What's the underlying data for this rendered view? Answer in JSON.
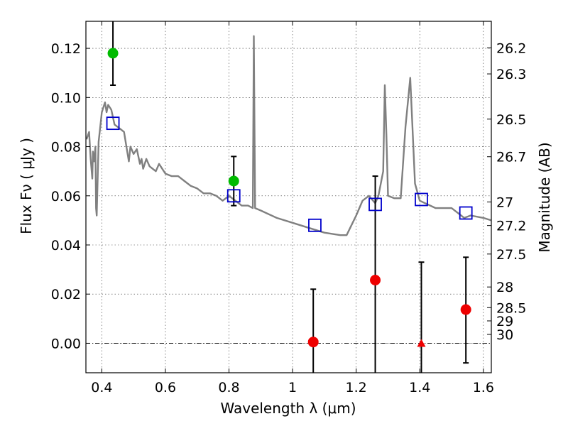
{
  "chart_data": {
    "type": "scatter",
    "title": "",
    "xlabel": "Wavelength  λ (μm)",
    "ylabel": "Flux  Fν  ( μJy )",
    "y2label": "Magnitude (AB)",
    "xlim": [
      0.35,
      1.625
    ],
    "ylim": [
      -0.012,
      0.131
    ],
    "grid": true,
    "x_ticks": [
      0.4,
      0.6,
      0.8,
      1.0,
      1.2,
      1.4,
      1.6
    ],
    "x_tick_labels": [
      "0.4",
      "0.6",
      "0.8",
      "1",
      "1.2",
      "1.4",
      "1.6"
    ],
    "y_ticks": [
      0.0,
      0.02,
      0.04,
      0.06,
      0.08,
      0.1,
      0.12
    ],
    "y_tick_labels": [
      "0.00",
      "0.02",
      "0.04",
      "0.06",
      "0.08",
      "0.10",
      "0.12"
    ],
    "y2_ticks": [
      {
        "label": "26.2",
        "flux": 0.1202
      },
      {
        "label": "26.3",
        "flux": 0.1096
      },
      {
        "label": "26.5",
        "flux": 0.0912
      },
      {
        "label": "26.7",
        "flux": 0.0759
      },
      {
        "label": "27",
        "flux": 0.0575
      },
      {
        "label": "27.2",
        "flux": 0.0479
      },
      {
        "label": "27.5",
        "flux": 0.0363
      },
      {
        "label": "28",
        "flux": 0.0229
      },
      {
        "label": "28.5",
        "flux": 0.0145
      },
      {
        "label": "29",
        "flux": 0.0091
      },
      {
        "label": "30",
        "flux": 0.0036
      }
    ],
    "colors": {
      "model": "#808080",
      "model_photometry": "#0000cc",
      "detection": "#00bb00",
      "faint": "#ee0000",
      "errorbar": "#000000"
    },
    "series": [
      {
        "kind": "line",
        "x": [
          0.352,
          0.36,
          0.365,
          0.37,
          0.372,
          0.376,
          0.38,
          0.382,
          0.384,
          0.39,
          0.395,
          0.4,
          0.405,
          0.41,
          0.415,
          0.42,
          0.43,
          0.44,
          0.45,
          0.46,
          0.47,
          0.48,
          0.485,
          0.49,
          0.5,
          0.51,
          0.52,
          0.525,
          0.53,
          0.54,
          0.55,
          0.56,
          0.57,
          0.58,
          0.6,
          0.62,
          0.64,
          0.66,
          0.68,
          0.7,
          0.72,
          0.74,
          0.76,
          0.78,
          0.8,
          0.82,
          0.84,
          0.86,
          0.875,
          0.878,
          0.882,
          0.9,
          0.95,
          1.0,
          1.05,
          1.1,
          1.15,
          1.17,
          1.2,
          1.22,
          1.24,
          1.26,
          1.27,
          1.285,
          1.29,
          1.295,
          1.3,
          1.32,
          1.34,
          1.355,
          1.37,
          1.385,
          1.4,
          1.45,
          1.5,
          1.54,
          1.56,
          1.6,
          1.625
        ],
        "y": [
          0.083,
          0.086,
          0.075,
          0.067,
          0.078,
          0.074,
          0.08,
          0.055,
          0.052,
          0.082,
          0.088,
          0.094,
          0.096,
          0.098,
          0.094,
          0.097,
          0.095,
          0.089,
          0.088,
          0.087,
          0.086,
          0.078,
          0.074,
          0.08,
          0.077,
          0.079,
          0.073,
          0.075,
          0.071,
          0.075,
          0.072,
          0.071,
          0.07,
          0.073,
          0.069,
          0.068,
          0.068,
          0.066,
          0.064,
          0.063,
          0.061,
          0.061,
          0.06,
          0.058,
          0.06,
          0.058,
          0.056,
          0.056,
          0.055,
          0.125,
          0.055,
          0.054,
          0.051,
          0.049,
          0.047,
          0.045,
          0.044,
          0.044,
          0.052,
          0.058,
          0.06,
          0.057,
          0.06,
          0.07,
          0.105,
          0.085,
          0.06,
          0.059,
          0.059,
          0.088,
          0.108,
          0.065,
          0.058,
          0.055,
          0.055,
          0.051,
          0.052,
          0.051,
          0.05
        ]
      },
      {
        "kind": "model_photometry",
        "x": [
          0.435,
          0.815,
          1.07,
          1.26,
          1.405,
          1.545
        ],
        "y": [
          0.0895,
          0.06,
          0.048,
          0.0565,
          0.0585,
          0.053
        ]
      },
      {
        "kind": "detection",
        "x": [
          0.435,
          0.815
        ],
        "y": [
          0.118,
          0.066
        ],
        "yerr_low": [
          0.105,
          0.056
        ],
        "yerr_high": [
          0.135,
          0.076
        ]
      },
      {
        "kind": "faint",
        "x": [
          1.065,
          1.26,
          1.545
        ],
        "y": [
          0.0005,
          0.0257,
          0.0137
        ],
        "yerr_low": [
          -0.013,
          -0.013,
          -0.008
        ],
        "yerr_high": [
          0.022,
          0.068,
          0.035
        ]
      },
      {
        "kind": "faint_triangle",
        "x": [
          1.405
        ],
        "y": [
          0.0
        ],
        "yerr_low": [
          -0.013
        ],
        "yerr_high": [
          0.033
        ]
      }
    ]
  }
}
